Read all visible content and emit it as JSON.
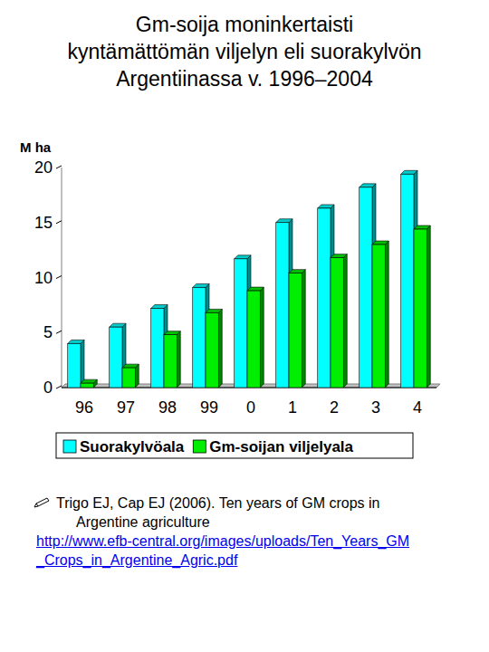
{
  "chart_data": {
    "type": "bar",
    "title": "Gm-soija moninkertaisti kyntämättömän viljelyn eli suorakylvön Argentiinassa v. 1996–2004",
    "y_label": "M ha",
    "categories": [
      "96",
      "97",
      "98",
      "99",
      "0",
      "1",
      "2",
      "3",
      "4"
    ],
    "series": [
      {
        "name": "Suorakylvöala",
        "color": "#00ffff",
        "values": [
          4.0,
          5.5,
          7.2,
          9.1,
          11.7,
          15.0,
          16.3,
          18.2,
          19.4
        ]
      },
      {
        "name": "Gm-soijan viljelyala",
        "color": "#00ee00",
        "values": [
          0.4,
          1.8,
          4.8,
          6.8,
          8.8,
          10.4,
          11.8,
          13.0,
          14.4
        ]
      }
    ],
    "ylim": [
      0,
      20
    ],
    "yticks": [
      0,
      5,
      10,
      15,
      20
    ],
    "grid": false,
    "legend": "bottom",
    "source": {
      "citation": "Trigo EJ, Cap EJ (2006). Ten years of GM crops in Argentine agriculture",
      "url": "http://www.efb-central.org/images/uploads/Ten_Years_GM_Crops_in_Argentine_Agric.pdf"
    }
  }
}
